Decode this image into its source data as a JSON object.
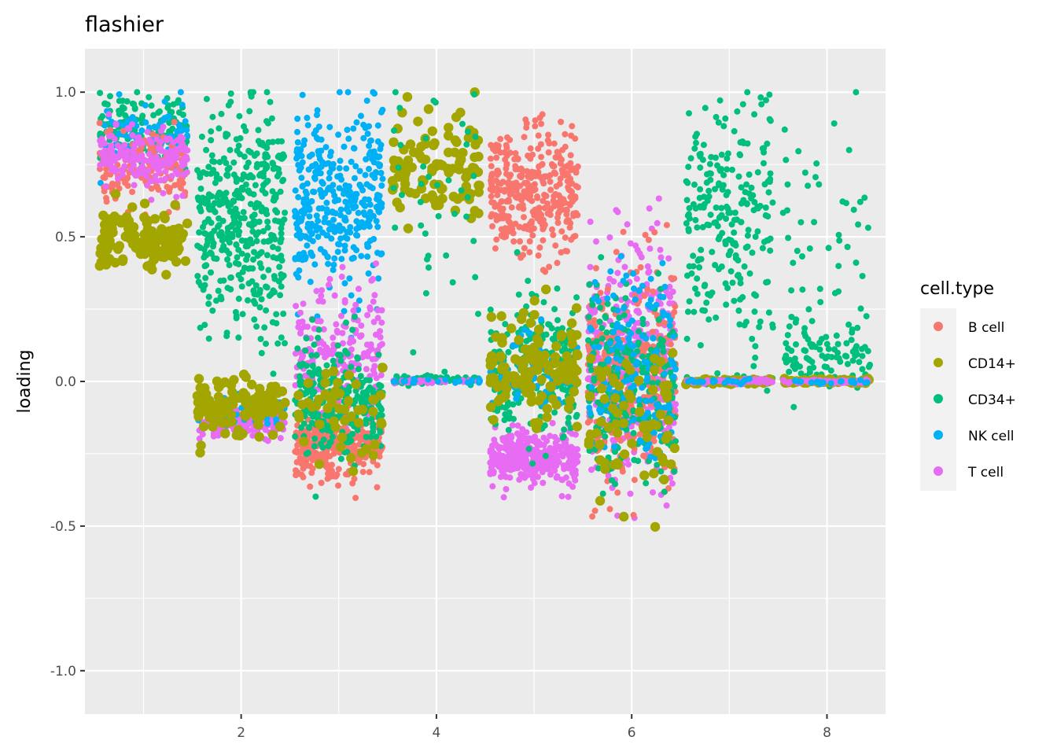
{
  "chart_data": {
    "type": "scatter",
    "subtype": "jittered strip plot of loadings per factor",
    "title": "flashier",
    "xlabel": "",
    "ylabel": "loading",
    "xlim": [
      0.4,
      8.6
    ],
    "ylim": [
      -1.15,
      1.15
    ],
    "x_ticks": [
      2,
      4,
      6,
      8
    ],
    "x_tick_labels": [
      "2",
      "4",
      "6",
      "8"
    ],
    "y_ticks": [
      -1.0,
      -0.5,
      0.0,
      0.5,
      1.0
    ],
    "y_tick_labels": [
      "-1.0",
      "-0.5",
      "0.0",
      "0.5",
      "1.0"
    ],
    "grid": true,
    "panel_background": "#ebebeb",
    "grid_color": "#ffffff",
    "legend": {
      "title": "cell.type",
      "position": "right",
      "entries": [
        "B cell",
        "CD14+",
        "CD34+",
        "NK cell",
        "T cell"
      ]
    },
    "colors": {
      "B cell": "#f8766d",
      "CD14+": "#a3a500",
      "CD34+": "#00bf7d",
      "NK cell": "#00b0f6",
      "T cell": "#e76bf3"
    },
    "jitter_width": 0.45,
    "series": [
      {
        "factor": 1,
        "groups": [
          {
            "cell_type": "CD34+",
            "center": 0.87,
            "spread": 0.06,
            "n": 160,
            "size": "small"
          },
          {
            "cell_type": "NK cell",
            "center": 0.86,
            "spread": 0.05,
            "n": 90,
            "size": "small"
          },
          {
            "cell_type": "B cell",
            "center": 0.73,
            "spread": 0.06,
            "n": 160,
            "size": "small"
          },
          {
            "cell_type": "T cell",
            "center": 0.77,
            "spread": 0.05,
            "n": 180,
            "size": "small"
          },
          {
            "cell_type": "CD14+",
            "center": 0.49,
            "spread": 0.05,
            "n": 140,
            "size": "large"
          }
        ]
      },
      {
        "factor": 2,
        "groups": [
          {
            "cell_type": "CD34+",
            "center": 0.55,
            "spread": 0.2,
            "n": 420,
            "size": "small"
          },
          {
            "cell_type": "T cell",
            "center": -0.14,
            "spread": 0.025,
            "n": 170,
            "size": "small"
          },
          {
            "cell_type": "NK cell",
            "center": -0.11,
            "spread": 0.03,
            "n": 60,
            "size": "small"
          },
          {
            "cell_type": "CD14+",
            "center": -0.08,
            "spread": 0.05,
            "n": 110,
            "size": "large"
          }
        ]
      },
      {
        "factor": 3,
        "groups": [
          {
            "cell_type": "NK cell",
            "center": 0.62,
            "spread": 0.16,
            "n": 360,
            "size": "small"
          },
          {
            "cell_type": "T cell",
            "center": 0.08,
            "spread": 0.13,
            "n": 200,
            "size": "small"
          },
          {
            "cell_type": "B cell",
            "center": -0.22,
            "spread": 0.055,
            "n": 300,
            "size": "small"
          },
          {
            "cell_type": "CD34+",
            "center": -0.06,
            "spread": 0.1,
            "n": 260,
            "size": "small"
          },
          {
            "cell_type": "CD14+",
            "center": -0.1,
            "spread": 0.07,
            "n": 50,
            "size": "large"
          }
        ]
      },
      {
        "factor": 4,
        "groups": [
          {
            "cell_type": "CD14+",
            "center": 0.74,
            "spread": 0.1,
            "n": 110,
            "size": "large"
          },
          {
            "cell_type": "CD34+",
            "center": 0.66,
            "spread": 0.2,
            "n": 40,
            "size": "small"
          },
          {
            "cell_type": "CD34+",
            "center": 0.005,
            "spread": 0.008,
            "n": 70,
            "size": "small"
          },
          {
            "cell_type": "T cell",
            "center": 0.0,
            "spread": 0.003,
            "n": 40,
            "size": "small"
          },
          {
            "cell_type": "NK cell",
            "center": 0.0,
            "spread": 0.004,
            "n": 20,
            "size": "small"
          }
        ]
      },
      {
        "factor": 5,
        "groups": [
          {
            "cell_type": "B cell",
            "center": 0.65,
            "spread": 0.11,
            "n": 360,
            "size": "small"
          },
          {
            "cell_type": "T cell",
            "center": -0.26,
            "spread": 0.045,
            "n": 360,
            "size": "small"
          },
          {
            "cell_type": "CD34+",
            "center": 0.05,
            "spread": 0.12,
            "n": 240,
            "size": "small"
          },
          {
            "cell_type": "NK cell",
            "center": 0.02,
            "spread": 0.08,
            "n": 90,
            "size": "small"
          },
          {
            "cell_type": "CD14+",
            "center": 0.05,
            "spread": 0.09,
            "n": 120,
            "size": "large"
          }
        ]
      },
      {
        "factor": 6,
        "groups": [
          {
            "cell_type": "T cell",
            "center": 0.08,
            "spread": 0.2,
            "n": 380,
            "size": "small"
          },
          {
            "cell_type": "B cell",
            "center": 0.02,
            "spread": 0.19,
            "n": 260,
            "size": "small"
          },
          {
            "cell_type": "CD34+",
            "center": -0.02,
            "spread": 0.16,
            "n": 260,
            "size": "small"
          },
          {
            "cell_type": "NK cell",
            "center": 0.05,
            "spread": 0.17,
            "n": 160,
            "size": "small"
          },
          {
            "cell_type": "CD14+",
            "center": -0.15,
            "spread": 0.12,
            "n": 70,
            "size": "large"
          }
        ]
      },
      {
        "factor": 7,
        "groups": [
          {
            "cell_type": "CD34+",
            "center": 0.55,
            "spread": 0.2,
            "n": 240,
            "size": "small"
          },
          {
            "cell_type": "CD34+",
            "center": 0.0,
            "spread": 0.01,
            "n": 40,
            "size": "small"
          },
          {
            "cell_type": "CD14+",
            "center": 0.0,
            "spread": 0.004,
            "n": 70,
            "size": "large"
          },
          {
            "cell_type": "T cell",
            "center": 0.0,
            "spread": 0.004,
            "n": 60,
            "size": "small"
          },
          {
            "cell_type": "NK cell",
            "center": 0.0,
            "spread": 0.004,
            "n": 20,
            "size": "small"
          }
        ]
      },
      {
        "factor": 8,
        "groups": [
          {
            "cell_type": "CD34+",
            "center": 0.4,
            "spread": 0.25,
            "n": 60,
            "size": "small"
          },
          {
            "cell_type": "CD34+",
            "center": 0.1,
            "spread": 0.05,
            "n": 80,
            "size": "small"
          },
          {
            "cell_type": "CD14+",
            "center": 0.0,
            "spread": 0.004,
            "n": 70,
            "size": "large"
          },
          {
            "cell_type": "T cell",
            "center": 0.0,
            "spread": 0.004,
            "n": 60,
            "size": "small"
          },
          {
            "cell_type": "NK cell",
            "center": 0.0,
            "spread": 0.004,
            "n": 20,
            "size": "small"
          }
        ]
      }
    ]
  }
}
